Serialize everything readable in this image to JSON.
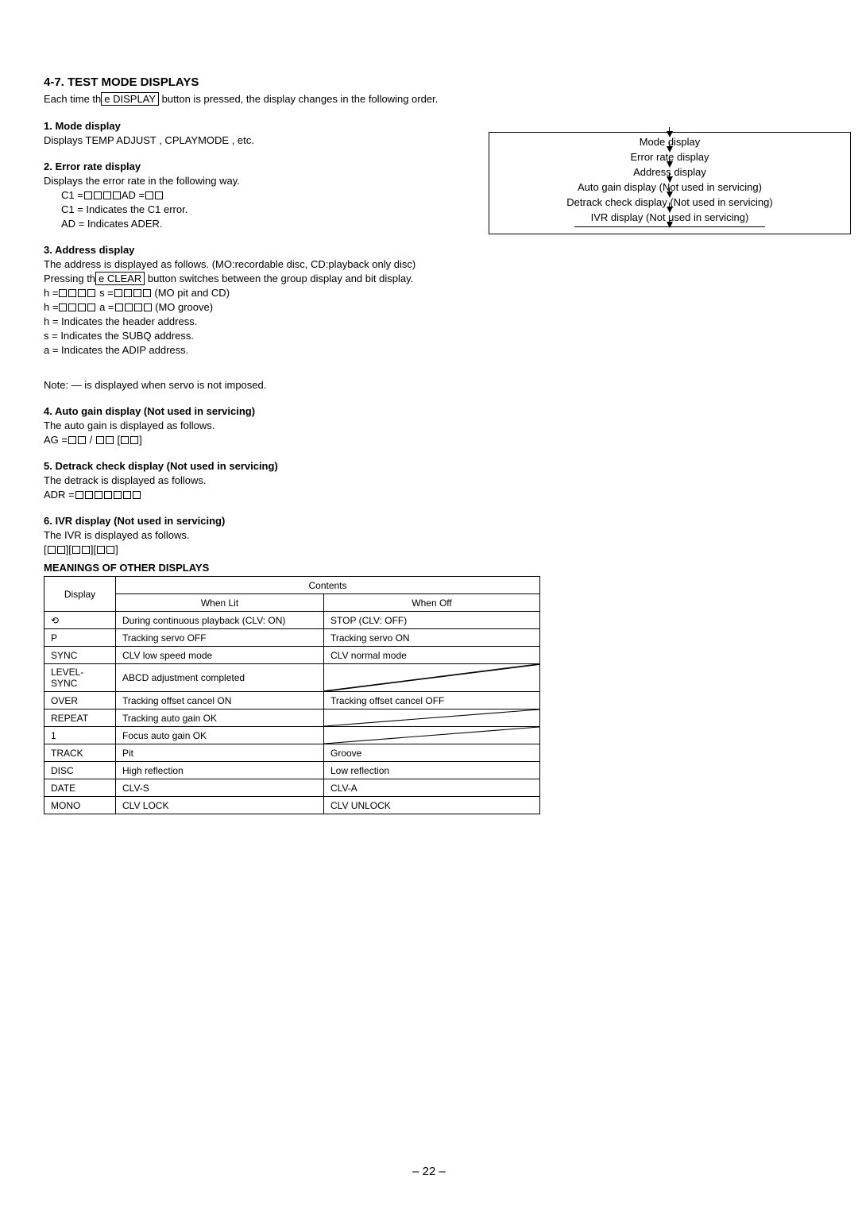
{
  "header": {
    "title": "4-7. TEST MODE DISPLAYS",
    "intro_a": "Each time th",
    "intro_b": " button is pressed, the display changes in the following order.",
    "display_btn": "e  DISPLAY"
  },
  "s1": {
    "head": "1. Mode display",
    "body": "Displays  TEMP ADJUST ,  CPLAYMODE , etc."
  },
  "s2": {
    "head": "2. Error rate display",
    "body": "Displays the error rate in the following way.",
    "l1a": "C1 =",
    "l1b": "AD =",
    "l2": "C1 = Indicates the C1 error.",
    "l3": "AD = Indicates ADER."
  },
  "s3": {
    "head": "3. Address display",
    "l1": "The address is displayed as follows. (MO:recordable disc, CD:playback only disc)",
    "l2a": "Pressing th",
    "l2_btn": "e  CLEAR",
    "l2b": " button switches between the group display and bit display.",
    "l3a": "h =",
    "l3b": "s =",
    "l3c": " (MO pit and CD)",
    "l4a": "h =",
    "l4b": "a =",
    "l4c": " (MO groove)",
    "l5": "h = Indicates the header address.",
    "l6": "s = Indicates the SUBQ address.",
    "l7": "a = Indicates the ADIP address."
  },
  "note": "Note:  —  is displayed when servo is not imposed.",
  "s4": {
    "head": "4. Auto gain display (Not used in servicing)",
    "l1": "The auto gain is displayed as follows.",
    "l2": "AG ="
  },
  "s5": {
    "head": "5. Detrack check display (Not used in servicing)",
    "l1": "The detrack is displayed as follows.",
    "l2": "ADR ="
  },
  "s6": {
    "head": "6. IVR display (Not used in servicing)",
    "l1": "The IVR is displayed as follows."
  },
  "table_head": "MEANINGS OF OTHER DISPLAYS",
  "flow": {
    "i1": "Mode display",
    "i2": "Error rate display",
    "i3": "Address display",
    "i4": "Auto gain display (Not used in servicing)",
    "i5": "Detrack check display (Not used in servicing)",
    "i6": "IVR display (Not used in servicing)"
  },
  "table": {
    "h_display": "Display",
    "h_contents": "Contents",
    "h_lit": "When Lit",
    "h_off": "When Off",
    "rows": [
      {
        "d": "⟲",
        "lit": "During continuous playback (CLV: ON)",
        "off": "STOP (CLV: OFF)"
      },
      {
        "d": "P",
        "lit": "Tracking servo OFF",
        "off": "Tracking servo ON"
      },
      {
        "d": "SYNC",
        "lit": "CLV low speed mode",
        "off": "CLV normal mode"
      },
      {
        "d": "LEVEL-SYNC",
        "lit": "ABCD adjustment completed",
        "off": ""
      },
      {
        "d": "OVER",
        "lit": "Tracking offset cancel ON",
        "off": "Tracking offset cancel OFF"
      },
      {
        "d": "REPEAT",
        "lit": "Tracking auto gain OK",
        "off": ""
      },
      {
        "d": "1",
        "lit": "Focus auto gain OK",
        "off": ""
      },
      {
        "d": "TRACK",
        "lit": "Pit",
        "off": "Groove"
      },
      {
        "d": "DISC",
        "lit": "High reflection",
        "off": "Low reflection"
      },
      {
        "d": "DATE",
        "lit": "CLV-S",
        "off": "CLV-A"
      },
      {
        "d": "MONO",
        "lit": "CLV LOCK",
        "off": "CLV UNLOCK"
      }
    ]
  },
  "page_num": "– 22 –"
}
